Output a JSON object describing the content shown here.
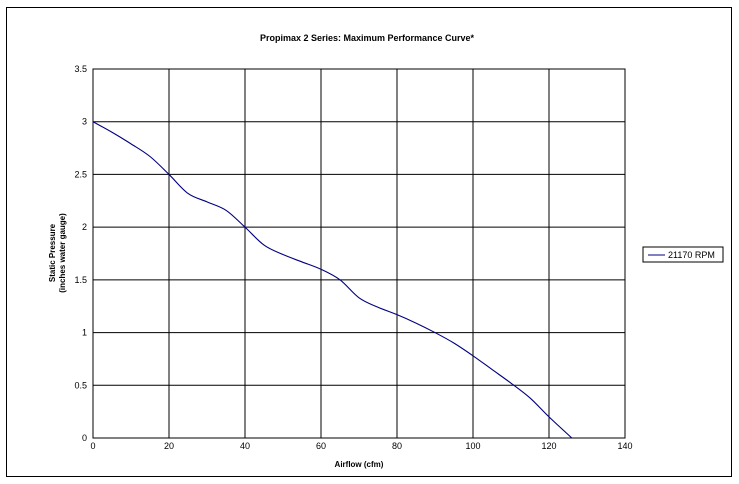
{
  "chart_data": {
    "type": "line",
    "title": "Propimax 2 Series: Maximum Performance Curve*",
    "xlabel": "Airflow (cfm)",
    "ylabel_line1": "Static Pressure",
    "ylabel_line2": "(inches water gauge)",
    "xlim": [
      0,
      140
    ],
    "ylim": [
      0,
      3.5
    ],
    "x_ticks": [
      "0",
      "20",
      "40",
      "60",
      "80",
      "100",
      "120",
      "140"
    ],
    "y_ticks": [
      "0",
      "0.5",
      "1",
      "1.5",
      "2",
      "2.5",
      "3",
      "3.5"
    ],
    "grid": true,
    "legend_position": "right",
    "series": [
      {
        "name": "21170 RPM",
        "color": "#000080",
        "points": [
          [
            0,
            3.0
          ],
          [
            5,
            2.9
          ],
          [
            10,
            2.79
          ],
          [
            15,
            2.67
          ],
          [
            20,
            2.5
          ],
          [
            25,
            2.32
          ],
          [
            30,
            2.24
          ],
          [
            35,
            2.16
          ],
          [
            40,
            2.0
          ],
          [
            45,
            1.83
          ],
          [
            50,
            1.74
          ],
          [
            55,
            1.67
          ],
          [
            60,
            1.6
          ],
          [
            65,
            1.5
          ],
          [
            70,
            1.33
          ],
          [
            75,
            1.24
          ],
          [
            80,
            1.17
          ],
          [
            85,
            1.09
          ],
          [
            90,
            1.0
          ],
          [
            95,
            0.9
          ],
          [
            100,
            0.78
          ],
          [
            105,
            0.65
          ],
          [
            110,
            0.52
          ],
          [
            115,
            0.38
          ],
          [
            120,
            0.2
          ],
          [
            126,
            0.0
          ]
        ]
      }
    ]
  }
}
